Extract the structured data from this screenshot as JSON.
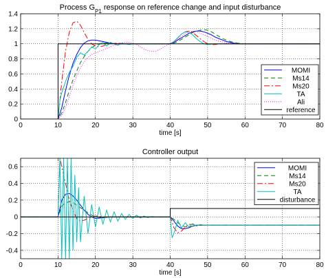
{
  "chart_data": [
    {
      "type": "line",
      "title": "Process G",
      "title_subscript": "P1",
      "title_suffix": " response on reference change and input disturbance",
      "xlabel": "time [s]",
      "ylabel": "",
      "xlim": [
        0,
        80
      ],
      "ylim": [
        0,
        1.4
      ],
      "xticks": [
        "0",
        "10",
        "20",
        "30",
        "40",
        "50",
        "60",
        "70",
        "80"
      ],
      "yticks": [
        "0",
        "0.2",
        "0.4",
        "0.6",
        "0.8",
        "1",
        "1.2",
        "1.4"
      ],
      "grid": true,
      "legend_position": "lower-right",
      "series": [
        {
          "name": "MOMI",
          "color": "#0000ff",
          "dash": "solid",
          "x": [
            0,
            10,
            11,
            12,
            13,
            14,
            15,
            16,
            17,
            18,
            19,
            20,
            22,
            24,
            26,
            28,
            30,
            35,
            39.9,
            41,
            42,
            43,
            44,
            45,
            46,
            47,
            48,
            49,
            50,
            51,
            52,
            53,
            54,
            55,
            56,
            57,
            58,
            60,
            65,
            70,
            80
          ],
          "y": [
            0,
            0,
            0.15,
            0.38,
            0.58,
            0.74,
            0.86,
            0.95,
            1.01,
            1.04,
            1.05,
            1.05,
            1.03,
            1.01,
            1.0,
            1.0,
            1.0,
            1.0,
            1.0,
            1.02,
            1.05,
            1.08,
            1.11,
            1.14,
            1.16,
            1.17,
            1.17,
            1.16,
            1.14,
            1.12,
            1.09,
            1.07,
            1.05,
            1.03,
            1.02,
            1.01,
            1.0,
            1.0,
            1.0,
            1.0,
            1.0
          ]
        },
        {
          "name": "Ms14",
          "color": "#008000",
          "dash": "6,4",
          "x": [
            0,
            10,
            11,
            12,
            13,
            14,
            15,
            16,
            17,
            18,
            19,
            20,
            21,
            22,
            24,
            26,
            28,
            30,
            35,
            39.9,
            41,
            42,
            43,
            44,
            45,
            46,
            47,
            48,
            49,
            50,
            51,
            52,
            53,
            54,
            55,
            56,
            57,
            58,
            60,
            65,
            70,
            80
          ],
          "y": [
            0,
            0,
            0.08,
            0.22,
            0.38,
            0.52,
            0.64,
            0.75,
            0.83,
            0.9,
            0.95,
            0.98,
            1.0,
            1.01,
            1.01,
            1.0,
            1.0,
            1.0,
            1.0,
            1.0,
            1.01,
            1.03,
            1.06,
            1.09,
            1.12,
            1.15,
            1.17,
            1.18,
            1.19,
            1.18,
            1.16,
            1.13,
            1.1,
            1.07,
            1.05,
            1.03,
            1.02,
            1.01,
            1.0,
            1.0,
            1.0,
            1.0
          ]
        },
        {
          "name": "Ms20",
          "color": "#ff0000",
          "dash": "8,3,2,3",
          "x": [
            0,
            10,
            11,
            12,
            13,
            14,
            15,
            16,
            17,
            18,
            19,
            20,
            21,
            22,
            23,
            24,
            26,
            28,
            30,
            35,
            39.9,
            41,
            42,
            43,
            44,
            45,
            46,
            47,
            48,
            49,
            50,
            51,
            52,
            53,
            54,
            56,
            58,
            60,
            65,
            70,
            80
          ],
          "y": [
            0,
            0,
            0.5,
            0.9,
            1.15,
            1.28,
            1.3,
            1.25,
            1.15,
            1.06,
            1.0,
            0.97,
            0.96,
            0.97,
            0.99,
            1.0,
            1.01,
            1.0,
            1.0,
            1.0,
            1.0,
            1.03,
            1.08,
            1.13,
            1.16,
            1.17,
            1.15,
            1.11,
            1.07,
            1.03,
            1.0,
            0.99,
            0.99,
            1.0,
            1.0,
            1.0,
            1.0,
            1.0,
            1.0,
            1.0,
            1.0
          ]
        },
        {
          "name": "TA",
          "color": "#00c0c0",
          "dash": "solid",
          "x": [
            0,
            10,
            10.5,
            11,
            12,
            13,
            14,
            15,
            16,
            17,
            18,
            19,
            20,
            21,
            22,
            23,
            24,
            25,
            26,
            27,
            28,
            29,
            30,
            32,
            35,
            39.9,
            41,
            42,
            43,
            44,
            45,
            46,
            47,
            48,
            49,
            50,
            52,
            55,
            60,
            70,
            80
          ],
          "y": [
            0,
            0,
            0.25,
            0.35,
            0.5,
            0.62,
            0.7,
            0.82,
            0.88,
            0.85,
            0.9,
            0.96,
            0.93,
            0.99,
            1.02,
            0.97,
            1.02,
            1.0,
            0.98,
            1.01,
            1.0,
            0.99,
            1.0,
            1.0,
            1.0,
            1.0,
            1.03,
            1.08,
            1.13,
            1.16,
            1.15,
            1.12,
            1.07,
            1.03,
            1.0,
            0.99,
            1.0,
            1.0,
            1.0,
            1.0,
            1.0
          ]
        },
        {
          "name": "Ali",
          "color": "#ff00ff",
          "dash": "1,2",
          "x": [
            0,
            10,
            11,
            12,
            13,
            14,
            15,
            16,
            17,
            18,
            19,
            20,
            21,
            22,
            23,
            24,
            25,
            26,
            27,
            28,
            29,
            30,
            31,
            32,
            33,
            34,
            35,
            36,
            37,
            38,
            39,
            40,
            41,
            42,
            43,
            44,
            45,
            46,
            47,
            48,
            50,
            52,
            55,
            58,
            60,
            65,
            70,
            80
          ],
          "y": [
            0,
            0,
            0.05,
            0.15,
            0.3,
            0.45,
            0.58,
            0.68,
            0.76,
            0.82,
            0.86,
            0.88,
            0.9,
            0.92,
            0.94,
            0.96,
            0.98,
            1.0,
            1.01,
            1.02,
            1.02,
            1.01,
            0.99,
            0.96,
            0.93,
            0.91,
            0.9,
            0.9,
            0.92,
            0.95,
            0.98,
            1.0,
            1.02,
            1.06,
            1.1,
            1.14,
            1.16,
            1.17,
            1.16,
            1.14,
            1.1,
            1.05,
            1.01,
            1.0,
            1.0,
            1.0,
            1.0,
            1.0
          ]
        },
        {
          "name": "reference",
          "color": "#000000",
          "dash": "solid",
          "x": [
            0,
            10,
            10,
            80
          ],
          "y": [
            0,
            0,
            1,
            1
          ]
        }
      ]
    },
    {
      "type": "line",
      "title": "Controller output",
      "xlabel": "time [s]",
      "ylabel": "",
      "xlim": [
        0,
        80
      ],
      "ylim": [
        -0.5,
        0.7
      ],
      "xticks": [
        "0",
        "10",
        "20",
        "30",
        "40",
        "50",
        "60",
        "70",
        "80"
      ],
      "yticks": [
        "-0.4",
        "-0.2",
        "0",
        "0.2",
        "0.4",
        "0.6"
      ],
      "grid": true,
      "legend_position": "top-right",
      "series": [
        {
          "name": "MOMI",
          "color": "#0000ff",
          "dash": "solid",
          "x": [
            0,
            10,
            11,
            12,
            13,
            14,
            15,
            16,
            17,
            18,
            19,
            20,
            22,
            24,
            26,
            28,
            30,
            39.9,
            40,
            41,
            42,
            43,
            44,
            45,
            46,
            47,
            48,
            50,
            55,
            60,
            70,
            80
          ],
          "y": [
            0,
            0,
            0.2,
            0.27,
            0.28,
            0.25,
            0.2,
            0.14,
            0.08,
            0.03,
            0.0,
            -0.02,
            -0.01,
            0.0,
            0.0,
            0.0,
            0.0,
            0.0,
            0.0,
            -0.05,
            -0.11,
            -0.14,
            -0.14,
            -0.13,
            -0.11,
            -0.1,
            -0.1,
            -0.1,
            -0.1,
            -0.1,
            -0.1,
            -0.1
          ]
        },
        {
          "name": "Ms14",
          "color": "#008000",
          "dash": "6,4",
          "x": [
            0,
            10,
            11,
            12,
            13,
            14,
            15,
            16,
            17,
            18,
            19,
            20,
            22,
            24,
            26,
            28,
            30,
            39.9,
            40,
            41,
            42,
            43,
            44,
            45,
            46,
            47,
            48,
            50,
            55,
            60,
            70,
            80
          ],
          "y": [
            0,
            0,
            0.13,
            0.17,
            0.18,
            0.17,
            0.14,
            0.11,
            0.08,
            0.05,
            0.02,
            0.0,
            -0.01,
            0.0,
            0.0,
            0.0,
            0.0,
            0.0,
            0.0,
            -0.03,
            -0.07,
            -0.1,
            -0.12,
            -0.12,
            -0.11,
            -0.1,
            -0.1,
            -0.1,
            -0.1,
            -0.1,
            -0.1,
            -0.1
          ]
        },
        {
          "name": "Ms20",
          "color": "#ff0000",
          "dash": "8,3,2,3",
          "x": [
            0,
            10,
            10.5,
            11,
            12,
            13,
            14,
            15,
            16,
            17,
            18,
            19,
            20,
            22,
            24,
            26,
            28,
            30,
            39.9,
            40,
            40.5,
            41,
            42,
            43,
            44,
            45,
            46,
            47,
            48,
            50,
            55,
            60,
            70,
            80
          ],
          "y": [
            0,
            0,
            0.7,
            0.6,
            0.4,
            0.2,
            0.08,
            -0.02,
            -0.05,
            -0.04,
            -0.02,
            0.0,
            0.01,
            0.0,
            0.0,
            0.0,
            0.0,
            0.0,
            0.0,
            0.0,
            -0.06,
            -0.13,
            -0.19,
            -0.17,
            -0.12,
            -0.09,
            -0.09,
            -0.1,
            -0.1,
            -0.1,
            -0.1,
            -0.1,
            -0.1,
            -0.1
          ]
        },
        {
          "name": "TA",
          "color": "#00c0c0",
          "dash": "solid",
          "x": [
            0,
            10,
            10.5,
            11,
            11.5,
            12,
            12.5,
            13,
            13.5,
            14,
            14.5,
            15,
            15.5,
            16,
            17,
            18,
            19,
            20,
            21,
            22,
            23,
            24,
            25,
            26,
            27,
            28,
            29,
            30,
            31,
            32,
            33,
            34,
            35,
            36,
            37,
            38,
            39.9,
            40,
            40.5,
            41,
            41.5,
            42,
            43,
            44,
            45,
            46,
            47,
            48,
            49,
            50,
            52,
            55,
            60,
            70,
            80
          ],
          "y": [
            0,
            0,
            0.7,
            -0.5,
            0.7,
            -0.5,
            0.7,
            -0.5,
            0.7,
            -0.4,
            0.5,
            -0.3,
            0.35,
            -0.3,
            0.25,
            -0.2,
            0.15,
            -0.12,
            0.12,
            -0.09,
            0.08,
            -0.06,
            0.06,
            -0.05,
            0.04,
            -0.03,
            0.03,
            -0.02,
            0.02,
            -0.015,
            0.01,
            -0.01,
            0.005,
            0.0,
            0.0,
            0.0,
            0.0,
            0.0,
            -0.25,
            -0.2,
            -0.12,
            -0.04,
            -0.13,
            -0.07,
            -0.12,
            -0.08,
            -0.11,
            -0.09,
            -0.1,
            -0.1,
            -0.1,
            -0.1,
            -0.1,
            -0.1,
            -0.1
          ]
        },
        {
          "name": "disturbance",
          "color": "#000000",
          "dash": "solid",
          "x": [
            0,
            40,
            40,
            80
          ],
          "y": [
            0,
            0,
            0.1,
            0.1
          ]
        }
      ]
    }
  ]
}
